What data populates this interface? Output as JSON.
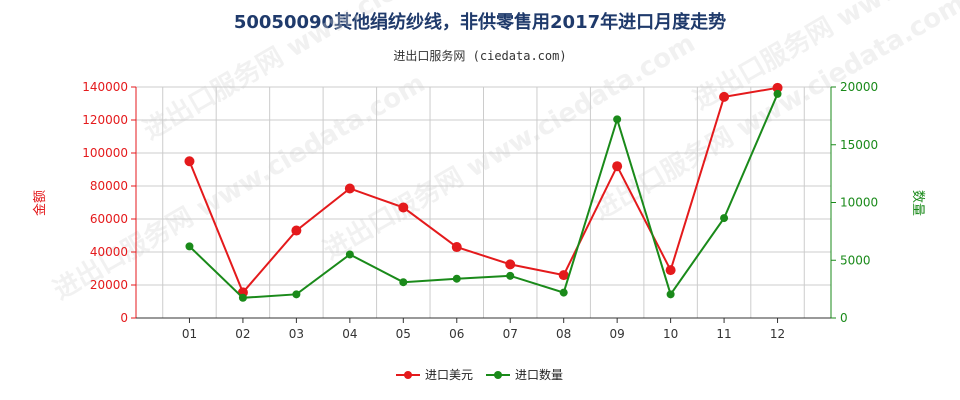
{
  "title": "50050090其他绢纺纱线，非供零售用2017年进口月度走势",
  "subtitle": "进出口服务网 (ciedata.com)",
  "watermark": "进出口服务网 www.ciedata.com",
  "colors": {
    "amount": "#e41a1c",
    "quantity": "#1a8a1a",
    "grid": "#cccccc",
    "axis": "#333333"
  },
  "chart_data": {
    "type": "line",
    "categories": [
      "01",
      "02",
      "03",
      "04",
      "05",
      "06",
      "07",
      "08",
      "09",
      "10",
      "11",
      "12"
    ],
    "y_left": {
      "label": "金额",
      "ylim": [
        0,
        140000
      ],
      "ticks": [
        0,
        20000,
        40000,
        60000,
        80000,
        100000,
        120000,
        140000
      ]
    },
    "y_right": {
      "label": "数量",
      "ylim": [
        0,
        20000
      ],
      "ticks": [
        0,
        5000,
        10000,
        15000,
        20000
      ]
    },
    "series": [
      {
        "name": "进口美元",
        "axis": "left",
        "color": "#e41a1c",
        "values": [
          95000,
          15500,
          53000,
          78500,
          67000,
          43000,
          32500,
          26000,
          92000,
          29000,
          134000,
          139500
        ]
      },
      {
        "name": "进口数量",
        "axis": "right",
        "color": "#1a8a1a",
        "values": [
          6200,
          1750,
          2050,
          5500,
          3100,
          3400,
          3650,
          2200,
          17200,
          2050,
          8650,
          19400
        ]
      }
    ],
    "grid": true,
    "legend": "bottom-center"
  }
}
